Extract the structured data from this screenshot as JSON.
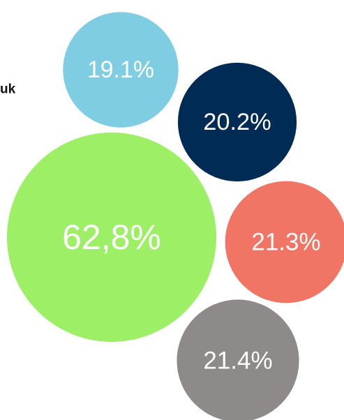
{
  "chart_data": {
    "type": "bubble",
    "annotations": [
      "uk"
    ],
    "values": [
      19.1,
      20.2,
      62.8,
      21.3,
      21.4
    ],
    "value_labels": [
      "19.1%",
      "20.2%",
      "62,8%",
      "21.3%",
      "21.4%"
    ],
    "colors": [
      "#7ecde3",
      "#002b54",
      "#9def66",
      "#f07565",
      "#8e8a89"
    ]
  }
}
